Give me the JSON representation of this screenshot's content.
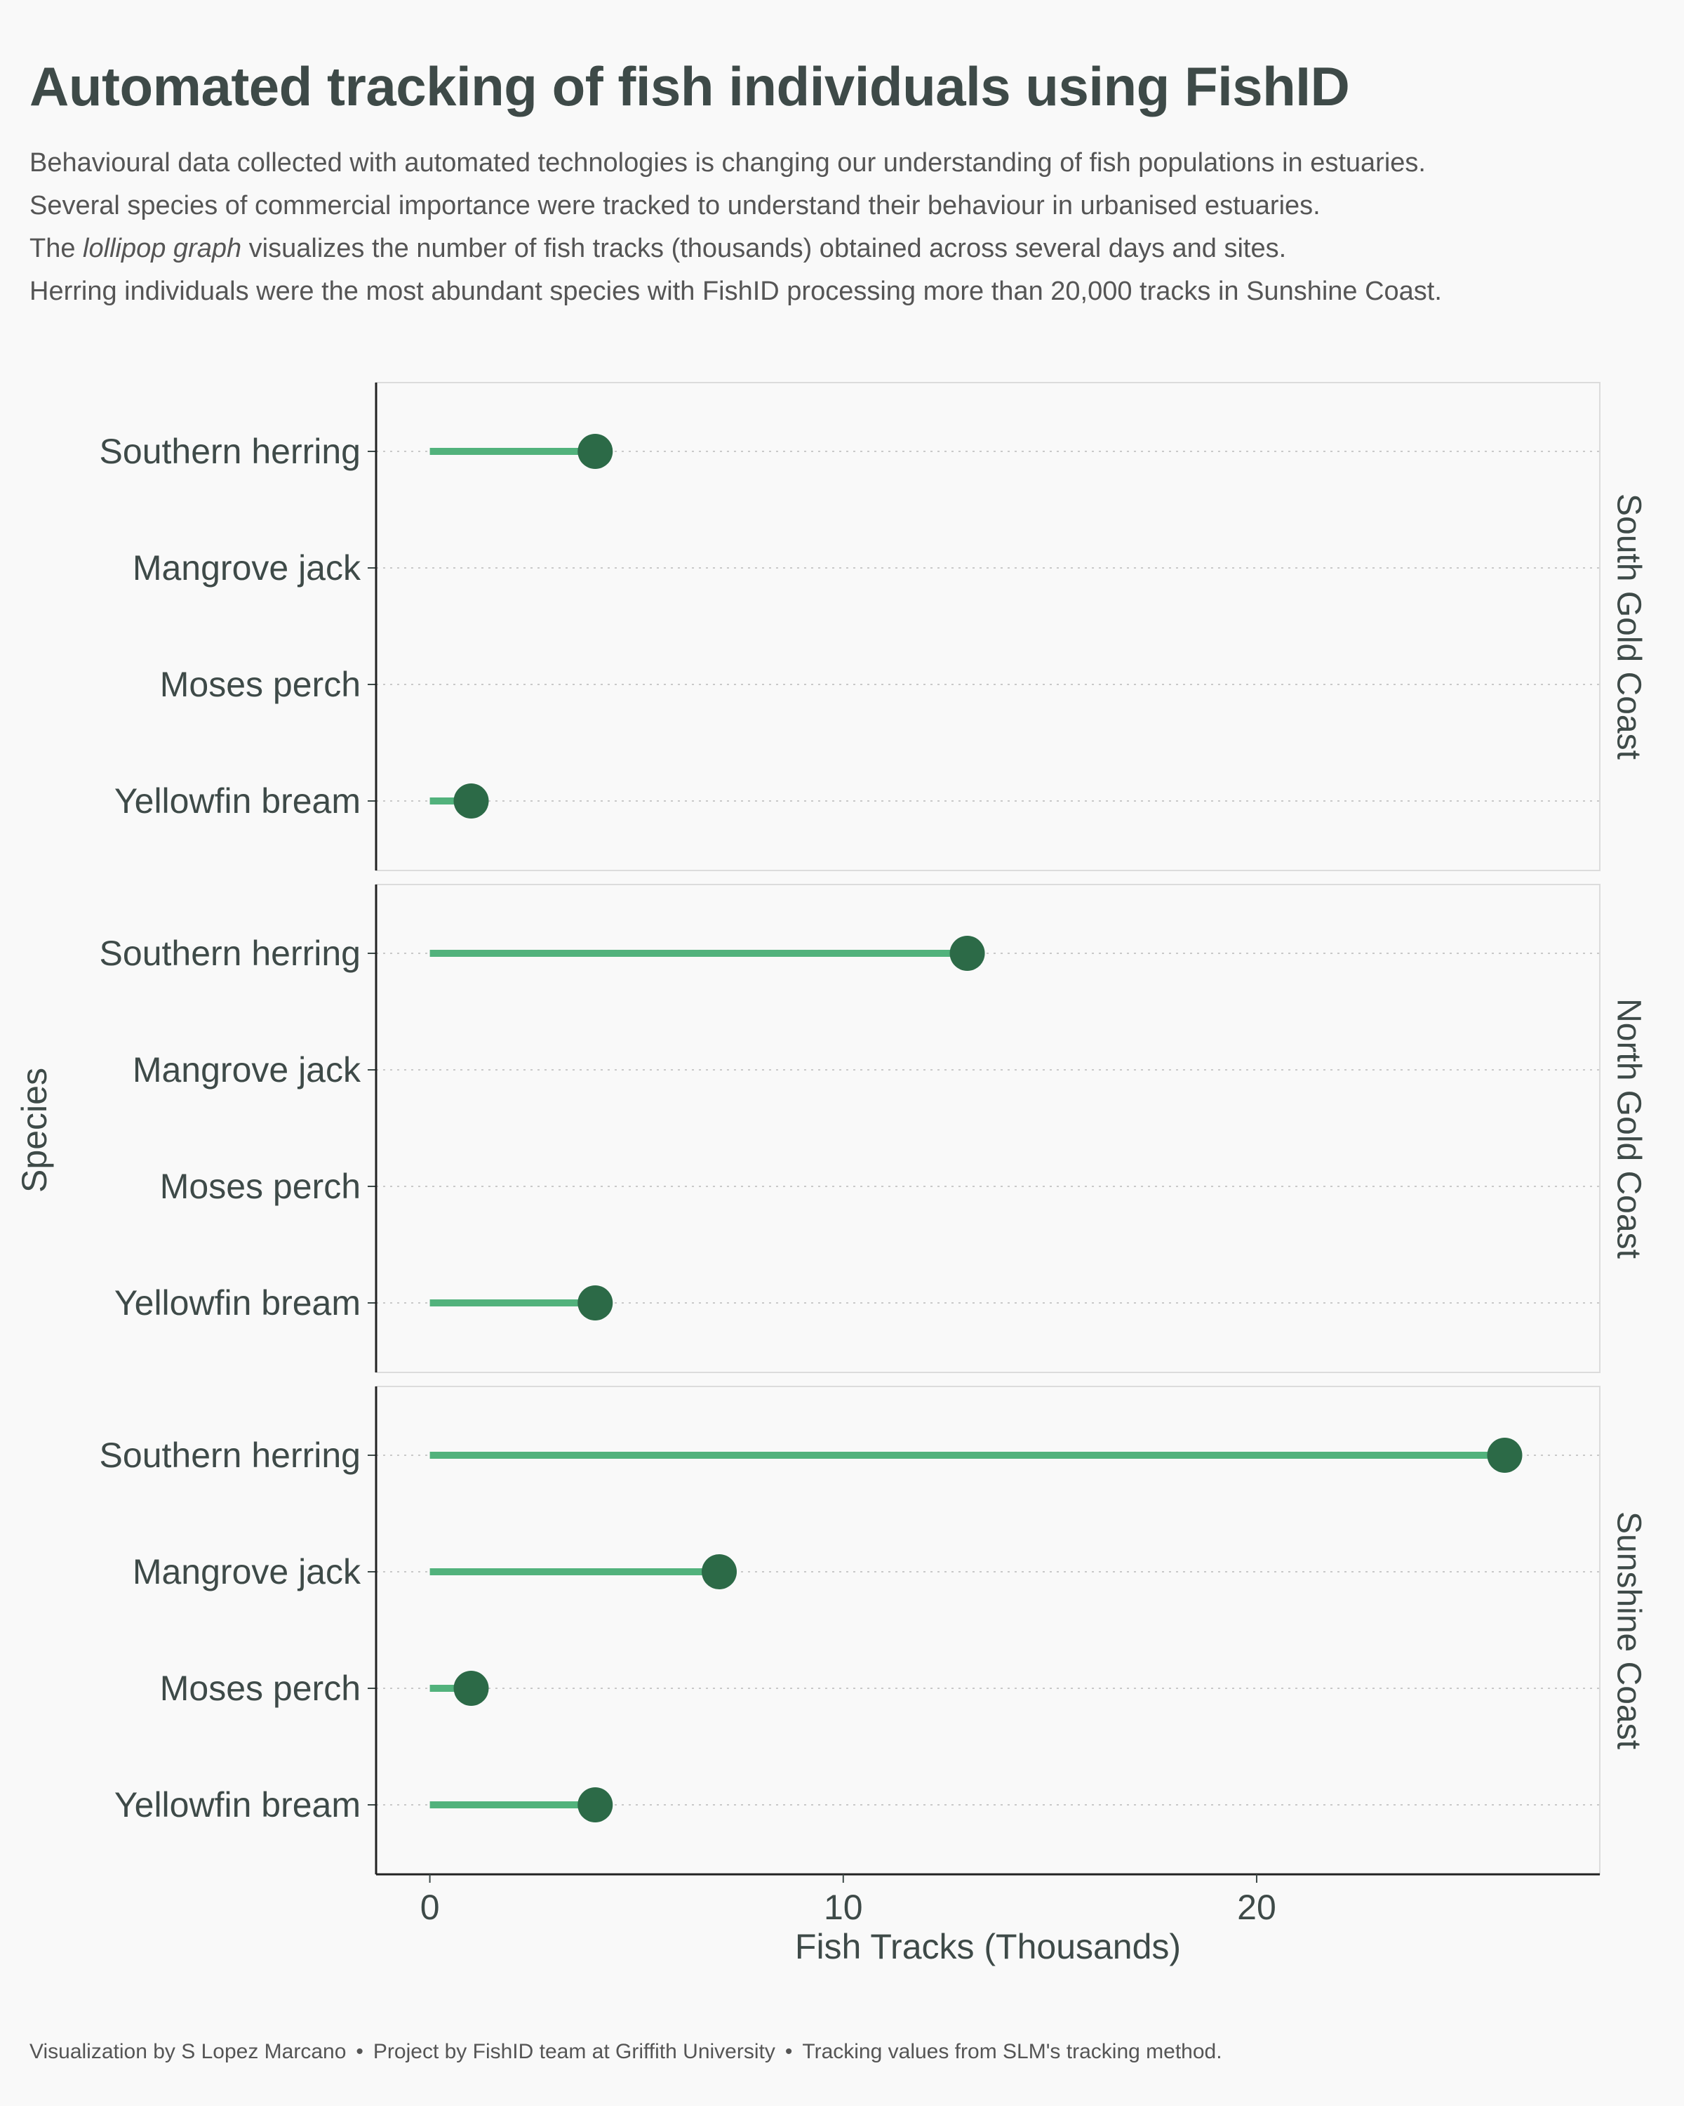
{
  "title": "Automated tracking of fish individuals using FishID",
  "subtitle": {
    "line1": "Behavioural data collected with automated technologies is changing our understanding of fish populations in estuaries.",
    "line2": "Several species of commercial importance were tracked to understand their behaviour in urbanised estuaries.",
    "line3_prefix": "The ",
    "line3_italic": "lollipop graph",
    "line3_suffix": " visualizes the number of fish tracks (thousands) obtained across several days and sites.",
    "line4": "Herring individuals were the most abundant species with FishID processing more than 20,000 tracks in Sunshine Coast."
  },
  "caption": {
    "part1": "Visualization by S Lopez Marcano",
    "part2": "Project by FishID team at Griffith University",
    "part3": "Tracking values from SLM's tracking method.",
    "separator": "•"
  },
  "chart_data": {
    "type": "lollipop",
    "xlabel": "Fish Tracks (Thousands)",
    "ylabel": "Species",
    "xlim": [
      -1.3,
      28.3
    ],
    "xticks": [
      0,
      10,
      20
    ],
    "categories": [
      "Southern herring",
      "Mangrove jack",
      "Moses perch",
      "Yellowfin bream"
    ],
    "grid": "horizontal dotted",
    "colors": {
      "stem": "#52b27c",
      "dot": "#2c6a47",
      "text": "#3e4a48",
      "frame": "#dcdcdc"
    },
    "panels": [
      {
        "name": "South Gold Coast",
        "values": [
          {
            "species": "Southern herring",
            "value": 4
          },
          {
            "species": "Yellowfin bream",
            "value": 1
          }
        ]
      },
      {
        "name": "North Gold Coast",
        "values": [
          {
            "species": "Southern herring",
            "value": 13
          },
          {
            "species": "Yellowfin bream",
            "value": 4
          }
        ]
      },
      {
        "name": "Sunshine Coast",
        "values": [
          {
            "species": "Southern herring",
            "value": 26
          },
          {
            "species": "Mangrove jack",
            "value": 7
          },
          {
            "species": "Moses perch",
            "value": 1
          },
          {
            "species": "Yellowfin bream",
            "value": 4
          }
        ]
      }
    ]
  }
}
